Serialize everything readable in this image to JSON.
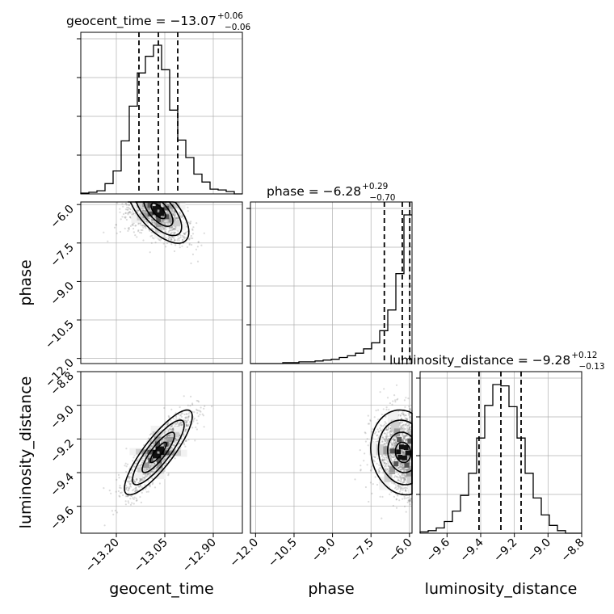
{
  "chart_data": {
    "type": "corner",
    "grid": true,
    "parameters": [
      {
        "name": "geocent_time",
        "title": {
          "prefix": "geocent_time = ",
          "median": "−13.07",
          "plus": "+0.06",
          "minus": "−0.06"
        },
        "range": [
          -13.31,
          -12.81
        ],
        "quantiles": [
          -13.13,
          -13.07,
          -13.01
        ],
        "ticks": [
          -13.2,
          -13.05,
          -12.9
        ],
        "tick_labels": [
          "−13.20",
          "−13.05",
          "−12.90"
        ],
        "hist_edges": [
          -13.31,
          -13.285,
          -13.26,
          -13.235,
          -13.21,
          -13.185,
          -13.16,
          -13.135,
          -13.11,
          -13.085,
          -13.06,
          -13.035,
          -13.01,
          -12.985,
          -12.96,
          -12.935,
          -12.91,
          -12.885,
          -12.86,
          -12.835,
          -12.81
        ],
        "hist_counts": [
          1,
          2,
          4,
          13,
          29,
          67,
          111,
          153,
          174,
          188,
          157,
          106,
          68,
          46,
          25,
          15,
          6,
          5,
          3,
          0
        ]
      },
      {
        "name": "phase",
        "title": {
          "prefix": "phase = ",
          "median": "−6.28",
          "plus": "+0.29",
          "minus": "−0.70"
        },
        "range": [
          -12.2,
          -5.9
        ],
        "quantiles": [
          -6.98,
          -6.28,
          -5.99
        ],
        "ticks": [
          -12.0,
          -10.5,
          -9.0,
          -7.5,
          -6.0
        ],
        "tick_labels": [
          "−12.0",
          "−10.5",
          "−9.0",
          "−7.5",
          "−6.0"
        ],
        "hist_edges": [
          -12.2,
          -11.885,
          -11.57,
          -11.255,
          -10.94,
          -10.625,
          -10.31,
          -9.995,
          -9.68,
          -9.365,
          -9.05,
          -8.735,
          -8.42,
          -8.105,
          -7.79,
          -7.475,
          -7.16,
          -6.845,
          -6.53,
          -6.215,
          -5.9
        ],
        "hist_counts": [
          0,
          0,
          0,
          0,
          1,
          1,
          2,
          2,
          3,
          4,
          5,
          7,
          9,
          12,
          17,
          24,
          38,
          62,
          104,
          172
        ]
      },
      {
        "name": "luminosity_distance",
        "title": {
          "prefix": "luminosity_distance = ",
          "median": "−9.28",
          "plus": "+0.12",
          "minus": "−0.13"
        },
        "range": [
          -9.76,
          -8.8
        ],
        "quantiles": [
          -9.41,
          -9.28,
          -9.16
        ],
        "ticks": [
          -9.6,
          -9.4,
          -9.2,
          -9.0,
          -8.8
        ],
        "tick_labels": [
          "−9.6",
          "−9.4",
          "−9.2",
          "−9.0",
          "−8.8"
        ],
        "hist_edges": [
          -9.76,
          -9.712,
          -9.664,
          -9.616,
          -9.568,
          -9.52,
          -9.472,
          -9.424,
          -9.376,
          -9.328,
          -9.28,
          -9.232,
          -9.184,
          -9.136,
          -9.088,
          -9.04,
          -8.992,
          -8.944,
          -8.896,
          -8.848,
          -8.8
        ],
        "hist_counts": [
          1,
          2,
          4,
          9,
          17,
          29,
          46,
          73,
          98,
          114,
          113,
          97,
          73,
          46,
          27,
          14,
          6,
          2,
          0,
          0
        ]
      }
    ],
    "y_tick_labels": {
      "phase": [
        "−6.0",
        "−7.5",
        "−9.0",
        "−10.5",
        "−12.0"
      ],
      "luminosity_distance": [
        "−8.8",
        "−9.0",
        "−9.2",
        "−9.4",
        "−9.6"
      ]
    },
    "pairs": [
      {
        "x": "geocent_time",
        "y": "phase",
        "center": [
          -13.07,
          -6.25
        ],
        "spread": [
          0.045,
          0.6
        ],
        "correlation": -0.65
      },
      {
        "x": "geocent_time",
        "y": "luminosity_distance",
        "center": [
          -13.07,
          -9.28
        ],
        "spread": [
          0.05,
          0.12
        ],
        "correlation": 0.85
      },
      {
        "x": "phase",
        "y": "luminosity_distance",
        "center": [
          -6.25,
          -9.28
        ],
        "spread": [
          0.6,
          0.12
        ],
        "correlation": -0.1
      }
    ],
    "colors": {
      "line": "#000000",
      "grid": "#b0b0b0",
      "points": "#7f7f7f"
    }
  }
}
